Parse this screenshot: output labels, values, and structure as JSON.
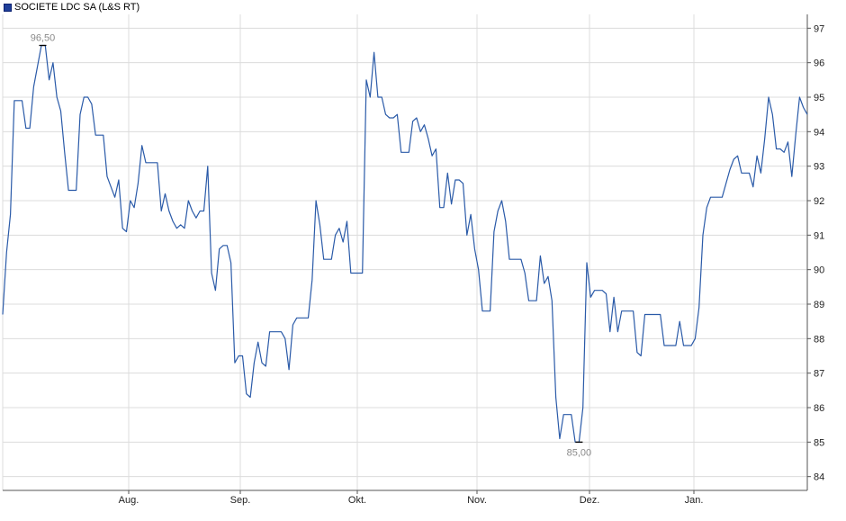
{
  "chart_data": {
    "type": "line",
    "series": [
      {
        "name": "SOCIETE LDC SA (L&S RT)",
        "values": [
          88.7,
          90.5,
          91.6,
          94.9,
          94.9,
          94.9,
          94.1,
          94.1,
          95.3,
          95.9,
          96.5,
          96.5,
          95.5,
          96.0,
          95.0,
          94.6,
          93.4,
          92.3,
          92.3,
          92.3,
          94.5,
          95.0,
          95.0,
          94.8,
          93.9,
          93.9,
          93.9,
          92.7,
          92.4,
          92.1,
          92.6,
          91.2,
          91.1,
          92.0,
          91.8,
          92.5,
          93.6,
          93.1,
          93.1,
          93.1,
          93.1,
          91.7,
          92.2,
          91.7,
          91.4,
          91.2,
          91.3,
          91.2,
          92.0,
          91.7,
          91.5,
          91.7,
          91.7,
          93.0,
          89.9,
          89.4,
          90.6,
          90.7,
          90.7,
          90.2,
          87.3,
          87.5,
          87.5,
          86.4,
          86.3,
          87.3,
          87.9,
          87.3,
          87.2,
          88.2,
          88.2,
          88.2,
          88.2,
          88.0,
          87.1,
          88.4,
          88.6,
          88.6,
          88.6,
          88.6,
          89.7,
          92.0,
          91.3,
          90.3,
          90.3,
          90.3,
          91.0,
          91.2,
          90.8,
          91.4,
          89.9,
          89.9,
          89.9,
          89.9,
          95.5,
          95.0,
          96.3,
          95.0,
          95.0,
          94.5,
          94.4,
          94.4,
          94.5,
          93.4,
          93.4,
          93.4,
          94.3,
          94.4,
          94.0,
          94.2,
          93.8,
          93.3,
          93.5,
          91.8,
          91.8,
          92.8,
          91.9,
          92.6,
          92.6,
          92.5,
          91.0,
          91.6,
          90.6,
          90.0,
          88.8,
          88.8,
          88.8,
          91.1,
          91.7,
          92.0,
          91.4,
          90.3,
          90.3,
          90.3,
          90.3,
          89.9,
          89.1,
          89.1,
          89.1,
          90.4,
          89.6,
          89.8,
          89.1,
          86.3,
          85.1,
          85.8,
          85.8,
          85.8,
          85.0,
          85.0,
          86.0,
          90.2,
          89.2,
          89.4,
          89.4,
          89.4,
          89.3,
          88.2,
          89.2,
          88.2,
          88.8,
          88.8,
          88.8,
          88.8,
          87.6,
          87.5,
          88.7,
          88.7,
          88.7,
          88.7,
          88.7,
          87.8,
          87.8,
          87.8,
          87.8,
          88.5,
          87.8,
          87.8,
          87.8,
          88.0,
          88.9,
          91.0,
          91.8,
          92.1,
          92.1,
          92.1,
          92.1,
          92.5,
          92.9,
          93.2,
          93.3,
          92.8,
          92.8,
          92.8,
          92.4,
          93.3,
          92.8,
          93.8,
          95.0,
          94.5,
          93.5,
          93.5,
          93.4,
          93.7,
          92.7,
          93.9,
          95.0,
          94.7,
          94.5
        ]
      }
    ],
    "x_ticks": [
      "Aug.",
      "Sep.",
      "Okt.",
      "Nov.",
      "Dez.",
      "Jan."
    ],
    "y_ticks": [
      "97",
      "96",
      "95",
      "94",
      "93",
      "92",
      "91",
      "90",
      "89",
      "88",
      "87",
      "86",
      "85",
      "84"
    ],
    "annotations": [
      {
        "label": "96,50",
        "value": 96.5,
        "type": "high"
      },
      {
        "label": "85,00",
        "value": 85.0,
        "type": "low"
      }
    ],
    "ylim": [
      83.6,
      97.4
    ],
    "grid": true,
    "legend_position": "top-left",
    "colors": {
      "line": "#2a5aa8",
      "grid": "#dcdcdc",
      "axis": "#555555",
      "annotation_text": "#8a8a8a"
    }
  }
}
